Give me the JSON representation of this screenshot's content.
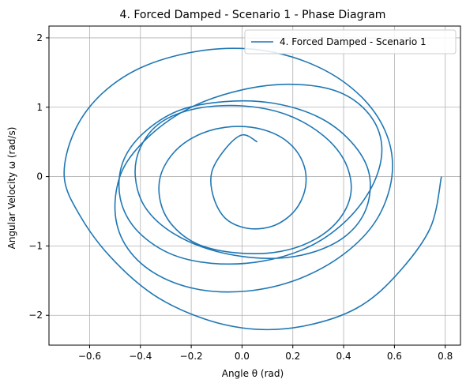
{
  "chart_data": {
    "type": "line",
    "title": "4. Forced Damped - Scenario 1 - Phase Diagram",
    "xlabel": "Angle θ (rad)",
    "ylabel": "Angular Velocity ω (rad/s)",
    "xlim": [
      -0.76,
      0.86
    ],
    "ylim": [
      -2.43,
      2.17
    ],
    "xticks": [
      -0.6,
      -0.4,
      -0.2,
      0.0,
      0.2,
      0.4,
      0.6,
      0.8
    ],
    "xtick_labels": [
      "−0.6",
      "−0.4",
      "−0.2",
      "0.0",
      "0.2",
      "0.4",
      "0.6",
      "0.8"
    ],
    "yticks": [
      -2,
      -1,
      0,
      1,
      2
    ],
    "ytick_labels": [
      "−2",
      "−1",
      "0",
      "1",
      "2"
    ],
    "grid": true,
    "legend_position": "upper-right",
    "colors": {
      "series": "#1f77b4",
      "grid": "#b0b0b0"
    },
    "series": [
      {
        "name": "4. Forced Damped - Scenario 1",
        "x": [
          0.785,
          0.74,
          0.6,
          0.45,
          0.25,
          0.05,
          -0.15,
          -0.35,
          -0.52,
          -0.64,
          -0.7,
          -0.66,
          -0.55,
          -0.38,
          -0.15,
          0.08,
          0.3,
          0.47,
          0.57,
          0.59,
          0.53,
          0.4,
          0.22,
          0.02,
          -0.18,
          -0.35,
          -0.46,
          -0.5,
          -0.47,
          -0.36,
          -0.2,
          0.0,
          0.2,
          0.38,
          0.5,
          0.55,
          0.52,
          0.42,
          0.27,
          0.08,
          -0.12,
          -0.29,
          -0.42,
          -0.48,
          -0.47,
          -0.39,
          -0.25,
          -0.07,
          0.12,
          0.3,
          0.43,
          0.5,
          0.49,
          0.41,
          0.27,
          0.1,
          -0.1,
          -0.27,
          -0.38,
          -0.42,
          -0.4,
          -0.32,
          -0.18,
          0.0,
          0.17,
          0.31,
          0.4,
          0.43,
          0.39,
          0.29,
          0.15,
          -0.02,
          -0.17,
          -0.27,
          -0.32,
          -0.32,
          -0.26,
          -0.16,
          -0.04,
          0.08,
          0.18,
          0.24,
          0.25,
          0.21,
          0.13,
          0.03,
          -0.06,
          -0.11,
          -0.12,
          -0.07,
          0.0,
          0.06
        ],
        "y": [
          0.0,
          -0.75,
          -1.45,
          -1.9,
          -2.15,
          -2.2,
          -2.05,
          -1.7,
          -1.15,
          -0.55,
          0.0,
          0.65,
          1.2,
          1.6,
          1.82,
          1.82,
          1.58,
          1.15,
          0.6,
          0.0,
          -0.62,
          -1.12,
          -1.48,
          -1.65,
          -1.62,
          -1.38,
          -0.98,
          -0.48,
          0.1,
          0.6,
          1.0,
          1.25,
          1.33,
          1.22,
          0.9,
          0.45,
          -0.08,
          -0.6,
          -1.0,
          -1.22,
          -1.25,
          -1.1,
          -0.75,
          -0.3,
          0.2,
          0.62,
          0.95,
          1.08,
          1.06,
          0.86,
          0.5,
          0.05,
          -0.45,
          -0.85,
          -1.1,
          -1.18,
          -1.08,
          -0.82,
          -0.45,
          0.0,
          0.42,
          0.78,
          0.98,
          1.02,
          0.9,
          0.62,
          0.25,
          -0.18,
          -0.58,
          -0.9,
          -1.08,
          -1.1,
          -0.98,
          -0.72,
          -0.38,
          0.02,
          0.38,
          0.62,
          0.72,
          0.68,
          0.5,
          0.2,
          -0.15,
          -0.48,
          -0.7,
          -0.75,
          -0.62,
          -0.32,
          0.05,
          0.38,
          0.6,
          0.5
        ]
      }
    ]
  }
}
